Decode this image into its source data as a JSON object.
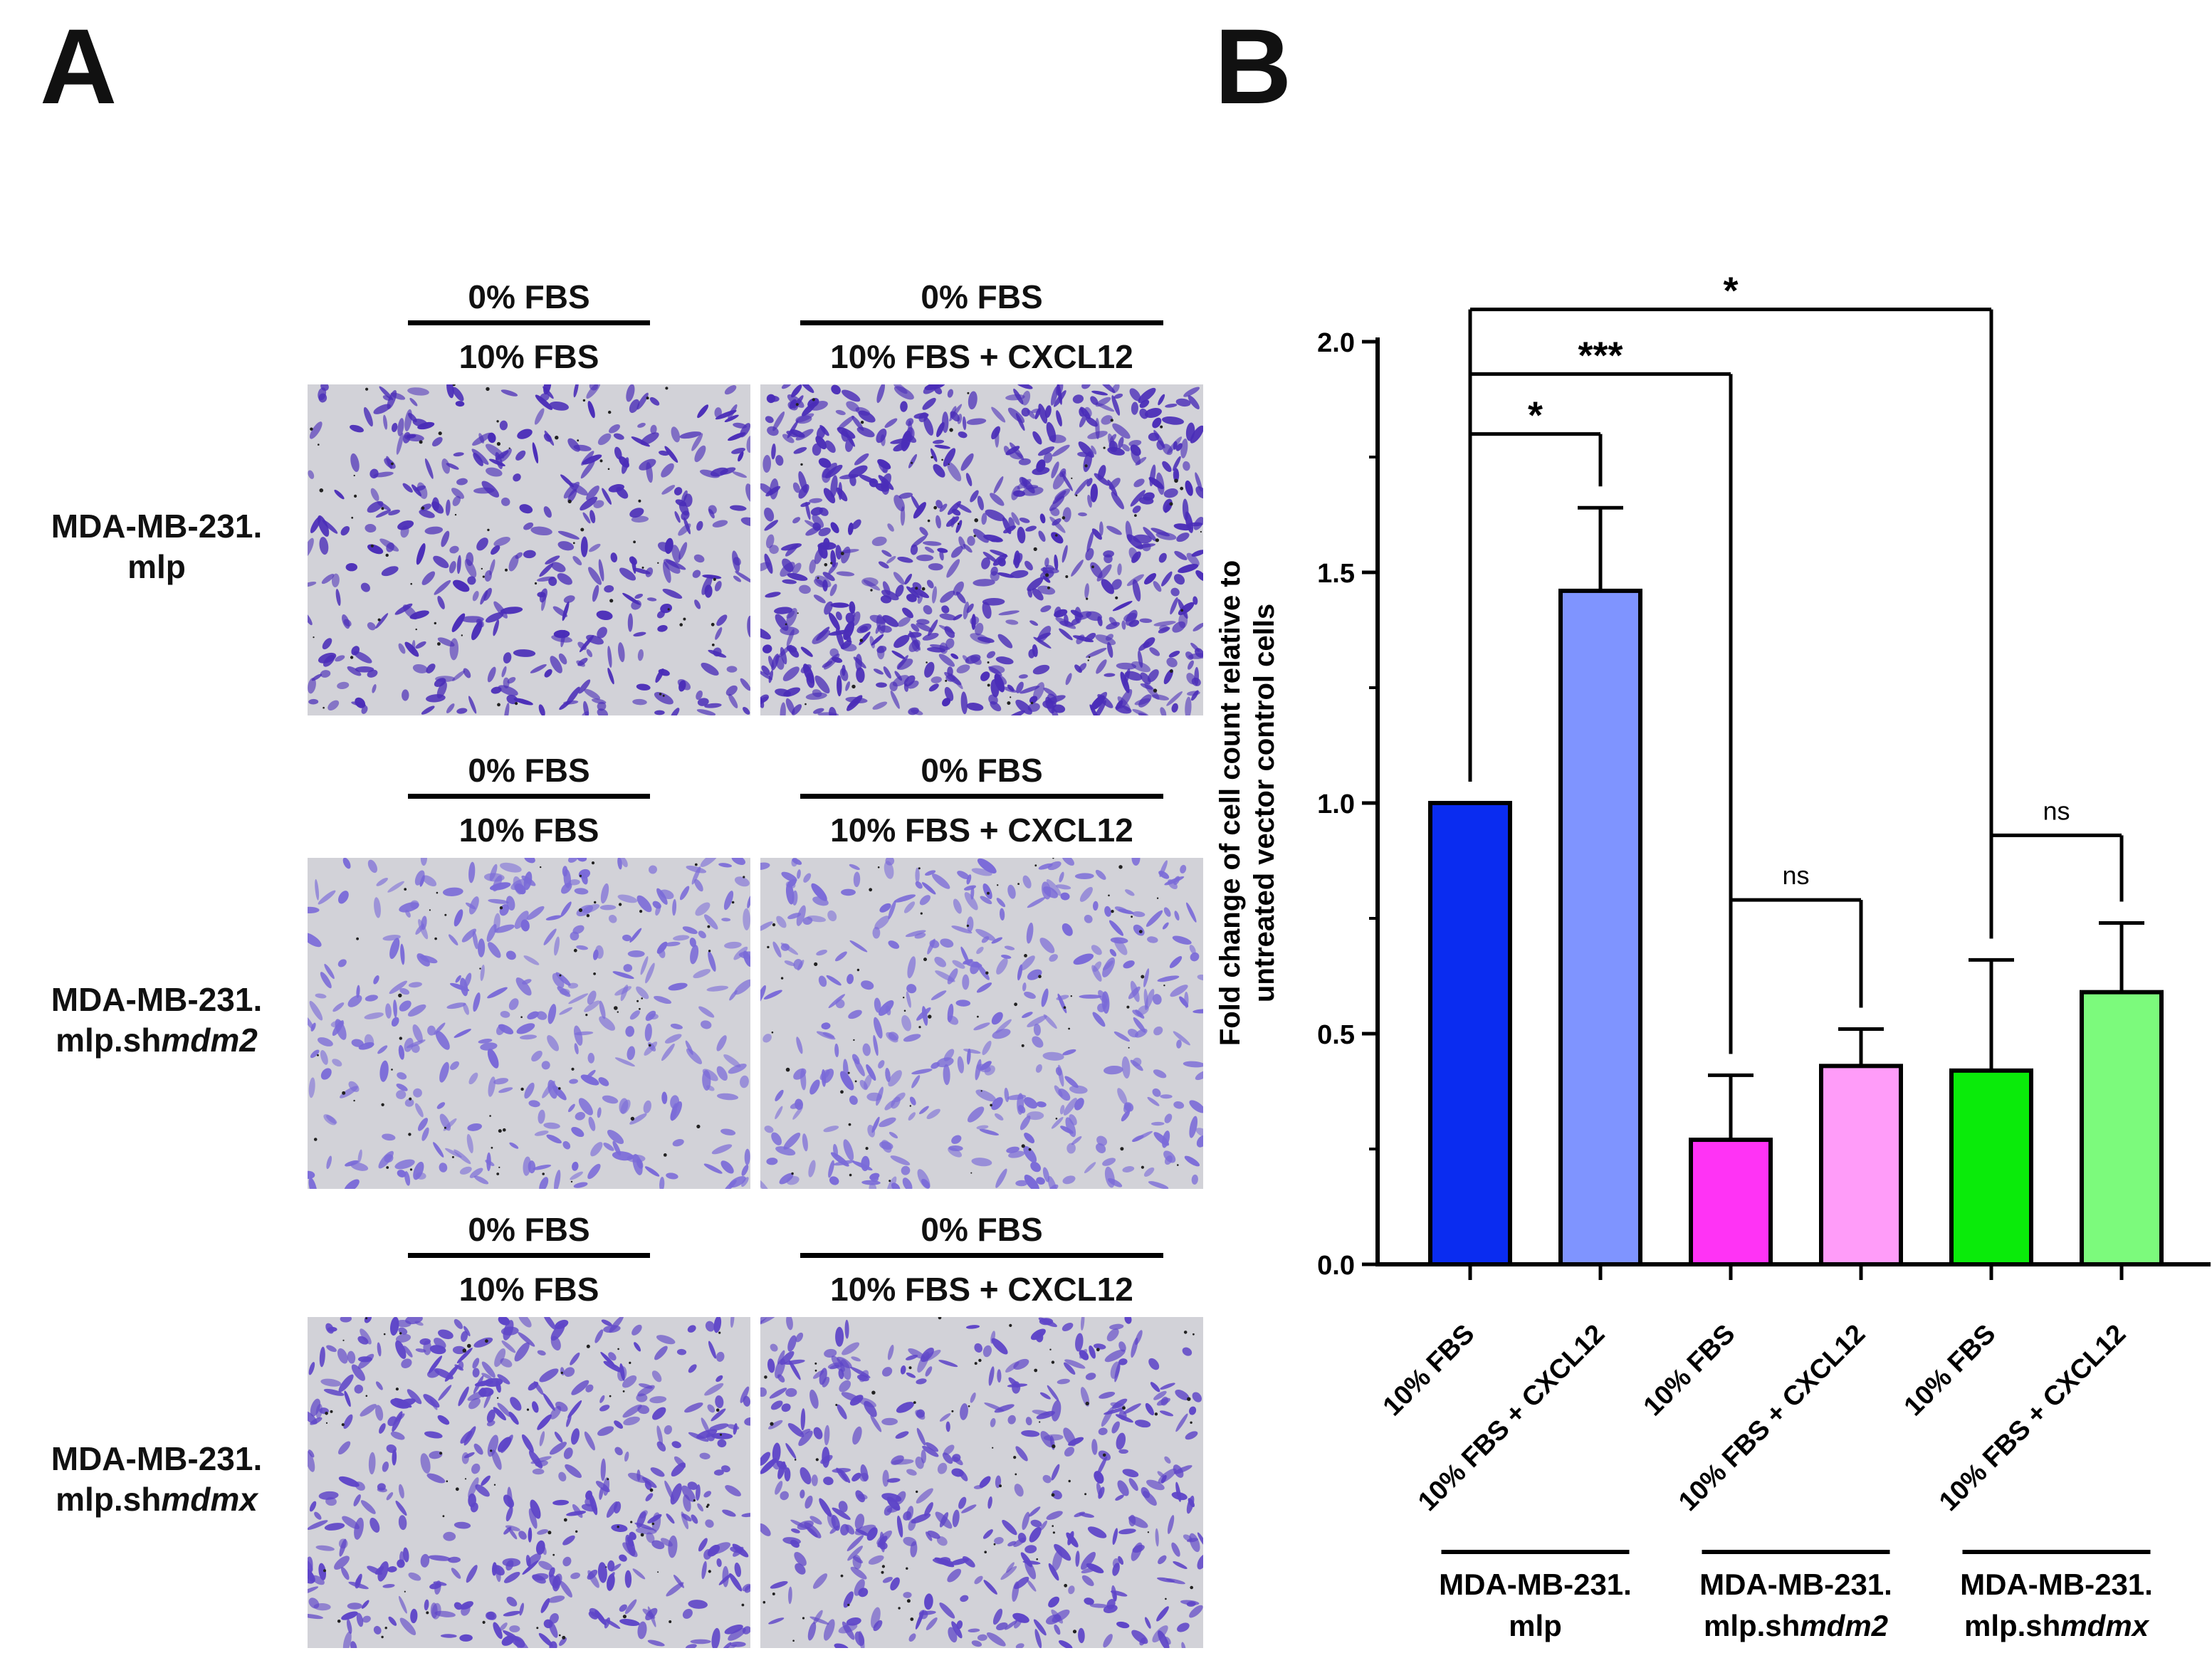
{
  "panels": {
    "a": "A",
    "b": "B"
  },
  "panel_a": {
    "rows": [
      {
        "label": [
          "MDA-MB-231.",
          "mlp"
        ],
        "label_italic": "",
        "left": {
          "top": "0% FBS",
          "bottom": "10% FBS"
        },
        "right": {
          "top": "0% FBS",
          "bottom": "10% FBS + CXCL12"
        },
        "density_left": 0.55,
        "density_right": 1.0,
        "stain": "#4a2db8"
      },
      {
        "label": [
          "MDA-MB-231.",
          "mlp.sh"
        ],
        "label_italic": "mdm2",
        "left": {
          "top": "0% FBS",
          "bottom": "10% FBS"
        },
        "right": {
          "top": "0% FBS",
          "bottom": "10% FBS + CXCL12"
        },
        "density_left": 0.5,
        "density_right": 0.55,
        "stain": "#7a6ad8"
      },
      {
        "label": [
          "MDA-MB-231.",
          "mlp.sh"
        ],
        "label_italic": "mdmx",
        "left": {
          "top": "0% FBS",
          "bottom": "10% FBS"
        },
        "right": {
          "top": "0% FBS",
          "bottom": "10% FBS + CXCL12"
        },
        "density_left": 0.65,
        "density_right": 0.6,
        "stain": "#5e45c8"
      }
    ]
  },
  "chart_data": {
    "type": "bar",
    "title": "",
    "xlabel": "",
    "ylabel": "Fold change of cell count relative to untreated vector control cells",
    "ylabel_lines": [
      "Fold change of cell count relative to",
      "untreated vector control cells"
    ],
    "ylim": [
      0,
      2.0
    ],
    "yticks": [
      "0.0",
      "0.5",
      "1.0",
      "1.5",
      "2.0"
    ],
    "yticks_values": [
      0,
      0.5,
      1.0,
      1.5,
      2.0
    ],
    "categories": [
      "10% FBS",
      "10% FBS + CXCL12",
      "10% FBS",
      "10% FBS + CXCL12",
      "10% FBS",
      "10% FBS + CXCL12"
    ],
    "values": [
      1.0,
      1.46,
      0.27,
      0.43,
      0.42,
      0.59
    ],
    "errors": [
      0,
      0.18,
      0.14,
      0.08,
      0.24,
      0.15
    ],
    "colors": [
      "#0a2cf0",
      "#7f94ff",
      "#ff33f5",
      "#ff9cf9",
      "#0aeb0a",
      "#7cfa7c"
    ],
    "groups": [
      {
        "label": "MDA-MB-231.",
        "sub": "mlp",
        "italic": "",
        "bars": [
          0,
          1
        ]
      },
      {
        "label": "MDA-MB-231.",
        "sub": "mlp.sh",
        "italic": "mdm2",
        "bars": [
          2,
          3
        ]
      },
      {
        "label": "MDA-MB-231.",
        "sub": "mlp.sh",
        "italic": "mdmx",
        "bars": [
          4,
          5
        ]
      }
    ],
    "significance": [
      {
        "from": 0,
        "to": 1,
        "label": "*",
        "level": 1.8
      },
      {
        "from": 0,
        "to": 2,
        "label": "***",
        "level": 1.93
      },
      {
        "from": 0,
        "to": 4,
        "label": "*",
        "level": 2.07
      },
      {
        "from": 2,
        "to": 3,
        "label": "ns",
        "level": 0.79
      },
      {
        "from": 4,
        "to": 5,
        "label": "ns",
        "level": 0.93
      }
    ]
  }
}
